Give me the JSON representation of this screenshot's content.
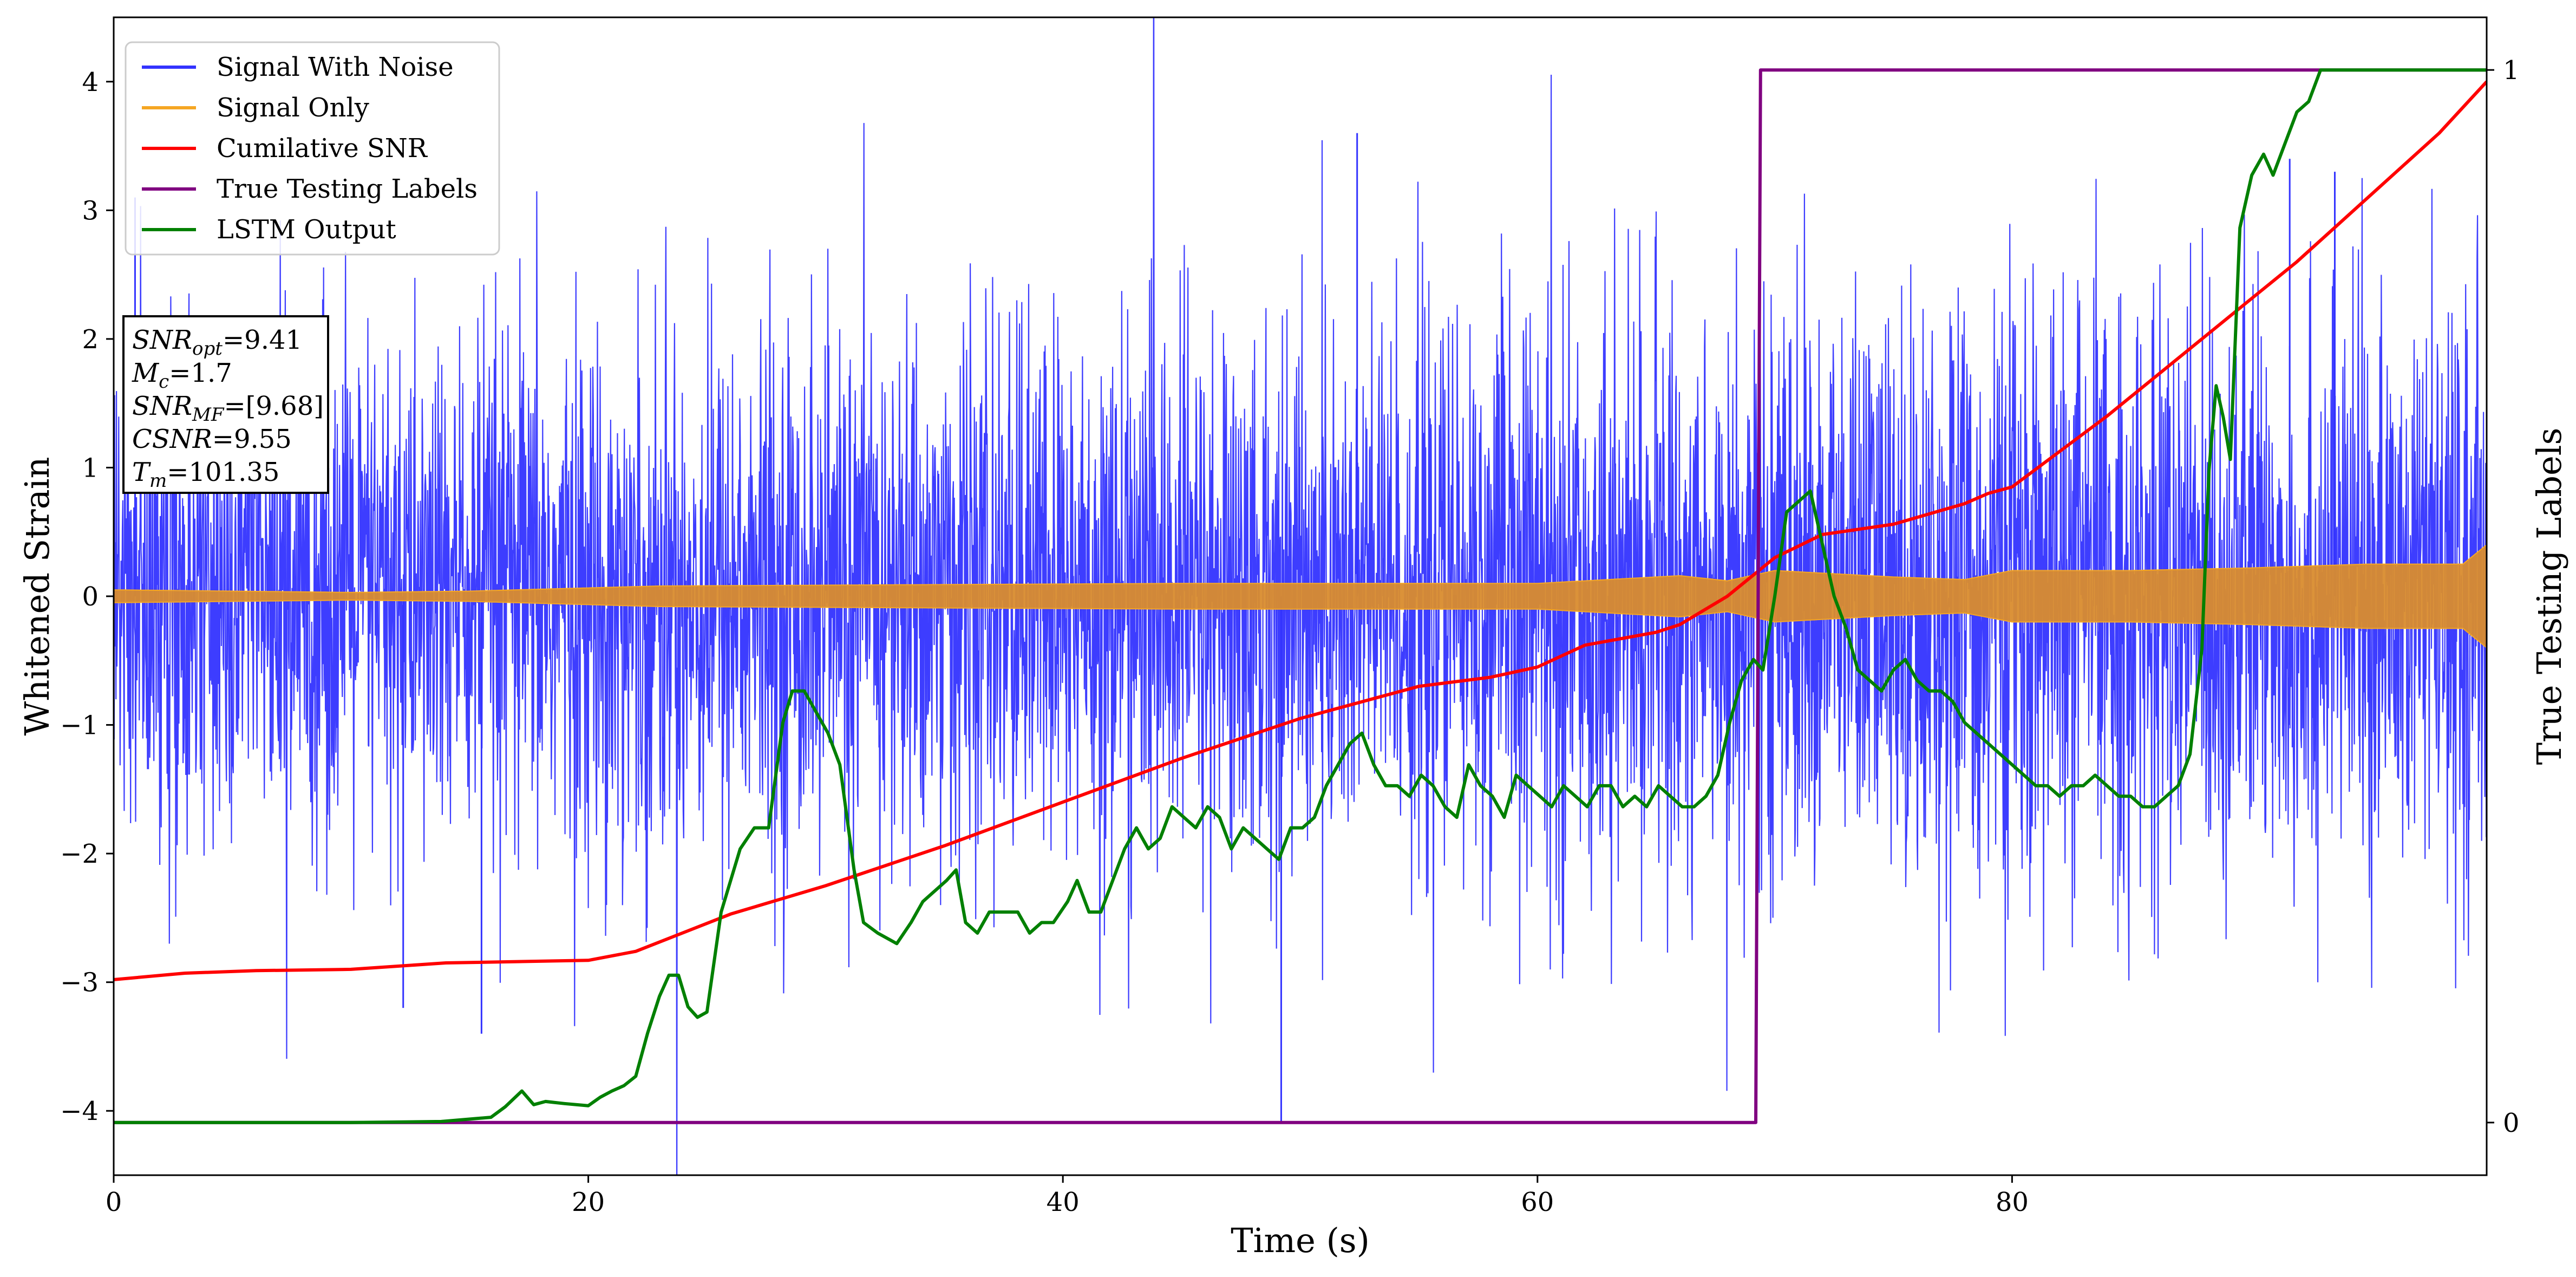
{
  "chart_data": {
    "type": "line",
    "xlabel": "Time (s)",
    "ylabel_left": "Whitened Strain",
    "ylabel_right": "True Testing Labels",
    "xlim": [
      0,
      100
    ],
    "ylim_left": [
      -4.5,
      4.5
    ],
    "ylim_right": [
      -0.05,
      1.05
    ],
    "x_ticks": [
      0,
      20,
      40,
      60,
      80
    ],
    "y_ticks_left": [
      -4,
      -3,
      -2,
      -1,
      0,
      1,
      2,
      3,
      4
    ],
    "y_ticks_right": [
      0,
      1
    ],
    "grid": false,
    "legend_position": "upper-left",
    "series": [
      {
        "name": "Signal With Noise",
        "color": "#3333ff",
        "axis": "left",
        "style": "dense noise, mostly within ±2 with spikes to about ±3.5",
        "envelope": {
          "x": [
            0,
            20,
            40,
            60,
            68,
            80,
            90,
            100
          ],
          "upper": [
            2.3,
            2.4,
            2.5,
            2.6,
            2.6,
            2.8,
            2.7,
            2.5
          ],
          "lower": [
            -2.3,
            -2.4,
            -2.5,
            -2.6,
            -2.6,
            -2.8,
            -2.7,
            -2.5
          ]
        },
        "extremes": [
          {
            "x": 0.9,
            "y": 3.1
          },
          {
            "x": 12.2,
            "y": -3.2
          },
          {
            "x": 15.5,
            "y": -3.4
          },
          {
            "x": 49.2,
            "y": -4.1
          },
          {
            "x": 52.4,
            "y": 3.6
          },
          {
            "x": 91.7,
            "y": 3.4
          },
          {
            "x": 93.6,
            "y": 3.3
          }
        ]
      },
      {
        "name": "Signal Only",
        "color": "#f5a623",
        "axis": "left",
        "style": "thin oscillating band growing in amplitude",
        "envelope": {
          "x": [
            0,
            10,
            15,
            23,
            45,
            52,
            60,
            66,
            68,
            70,
            75,
            78,
            80,
            85,
            90,
            95,
            99,
            100
          ],
          "amplitude": [
            0.05,
            0.03,
            0.04,
            0.08,
            0.1,
            0.1,
            0.1,
            0.16,
            0.12,
            0.2,
            0.15,
            0.13,
            0.2,
            0.2,
            0.22,
            0.25,
            0.25,
            0.4
          ]
        }
      },
      {
        "name": "Cumilative SNR",
        "color": "#ff0000",
        "axis": "left",
        "x": [
          0,
          3,
          6,
          10,
          14,
          20,
          22,
          26,
          30,
          35,
          40,
          45,
          50,
          55,
          58,
          60,
          62,
          65,
          66,
          68,
          70,
          72,
          75,
          78,
          79,
          80,
          84,
          88,
          90,
          92,
          95,
          98,
          100
        ],
        "y": [
          -2.98,
          -2.93,
          -2.91,
          -2.9,
          -2.85,
          -2.83,
          -2.76,
          -2.47,
          -2.25,
          -1.94,
          -1.6,
          -1.26,
          -0.95,
          -0.7,
          -0.63,
          -0.55,
          -0.38,
          -0.28,
          -0.22,
          0.0,
          0.3,
          0.48,
          0.56,
          0.72,
          0.8,
          0.85,
          1.4,
          2.0,
          2.3,
          2.6,
          3.1,
          3.6,
          4.0
        ]
      },
      {
        "name": "True Testing Labels",
        "color": "#800080",
        "axis": "right",
        "x": [
          0,
          69.2,
          69.4,
          100
        ],
        "y": [
          0,
          0,
          1,
          1
        ]
      },
      {
        "name": "LSTM Output",
        "color": "#008000",
        "axis": "right",
        "x": [
          0,
          10,
          13.8,
          15.9,
          16.5,
          17.2,
          17.7,
          18.2,
          19,
          20,
          20.5,
          21,
          21.5,
          22,
          22.5,
          23,
          23.4,
          23.8,
          24.2,
          24.6,
          25,
          25.6,
          26.4,
          27,
          27.6,
          28.2,
          28.6,
          29.1,
          29.6,
          30.1,
          30.6,
          31.2,
          31.6,
          32.2,
          33,
          33.6,
          34.1,
          34.6,
          35.1,
          35.5,
          35.9,
          36.4,
          36.9,
          37.3,
          37.8,
          38.1,
          38.6,
          39.1,
          39.6,
          40.2,
          40.6,
          41.1,
          41.6,
          42.6,
          43.1,
          43.6,
          44.1,
          44.6,
          45.1,
          45.6,
          46.1,
          46.6,
          47.1,
          47.6,
          48.1,
          48.6,
          49.1,
          49.6,
          50.1,
          50.6,
          51.1,
          51.6,
          52.1,
          52.6,
          53.1,
          53.6,
          54.1,
          54.6,
          55.1,
          55.6,
          56.1,
          56.6,
          57.1,
          57.6,
          58.1,
          58.6,
          59.1,
          59.6,
          60.1,
          60.6,
          61.1,
          61.6,
          62.1,
          62.6,
          63.1,
          63.6,
          64.1,
          64.6,
          65.1,
          65.6,
          66.1,
          66.6,
          67.1,
          67.6,
          68.1,
          68.6,
          69.1,
          69.5,
          70,
          70.5,
          71,
          71.5,
          72,
          72.5,
          73,
          73.5,
          74,
          74.5,
          75,
          75.5,
          76,
          76.5,
          77,
          77.5,
          78,
          78.5,
          79,
          79.5,
          80,
          80.5,
          81,
          81.5,
          82,
          82.5,
          83,
          83.5,
          84,
          84.5,
          85,
          85.5,
          86,
          86.5,
          87,
          87.5,
          88,
          88.3,
          88.6,
          88.9,
          89.2,
          89.6,
          90.1,
          90.6,
          91,
          91.5,
          92,
          92.5,
          93,
          94,
          95,
          96,
          97,
          98,
          99,
          100
        ],
        "y": [
          0,
          0,
          0.001,
          0.005,
          0.015,
          0.03,
          0.017,
          0.02,
          0.018,
          0.016,
          0.024,
          0.03,
          0.035,
          0.044,
          0.085,
          0.12,
          0.14,
          0.14,
          0.11,
          0.1,
          0.105,
          0.2,
          0.26,
          0.28,
          0.28,
          0.38,
          0.41,
          0.41,
          0.39,
          0.37,
          0.34,
          0.24,
          0.19,
          0.18,
          0.17,
          0.19,
          0.21,
          0.22,
          0.23,
          0.24,
          0.19,
          0.18,
          0.2,
          0.2,
          0.2,
          0.2,
          0.18,
          0.19,
          0.19,
          0.21,
          0.23,
          0.2,
          0.2,
          0.26,
          0.28,
          0.26,
          0.27,
          0.3,
          0.29,
          0.28,
          0.3,
          0.29,
          0.26,
          0.28,
          0.27,
          0.26,
          0.25,
          0.28,
          0.28,
          0.29,
          0.32,
          0.34,
          0.36,
          0.37,
          0.34,
          0.32,
          0.32,
          0.31,
          0.33,
          0.32,
          0.3,
          0.29,
          0.34,
          0.32,
          0.31,
          0.29,
          0.33,
          0.32,
          0.31,
          0.3,
          0.32,
          0.31,
          0.3,
          0.32,
          0.32,
          0.3,
          0.31,
          0.3,
          0.32,
          0.31,
          0.3,
          0.3,
          0.31,
          0.33,
          0.38,
          0.42,
          0.44,
          0.43,
          0.5,
          0.58,
          0.59,
          0.6,
          0.55,
          0.5,
          0.47,
          0.43,
          0.42,
          0.41,
          0.43,
          0.44,
          0.42,
          0.41,
          0.41,
          0.4,
          0.38,
          0.37,
          0.36,
          0.35,
          0.34,
          0.33,
          0.32,
          0.32,
          0.31,
          0.32,
          0.32,
          0.33,
          0.32,
          0.31,
          0.31,
          0.3,
          0.3,
          0.31,
          0.32,
          0.35,
          0.45,
          0.62,
          0.7,
          0.67,
          0.63,
          0.85,
          0.9,
          0.92,
          0.9,
          0.93,
          0.96,
          0.97,
          1.0,
          1.0,
          1.0,
          1.0,
          1.0,
          1.0,
          1.0,
          1.0
        ]
      }
    ],
    "annotation_lines": [
      {
        "var": "SNR",
        "sub": "opt",
        "value": "=9.41"
      },
      {
        "var": "M",
        "sub": "c",
        "value": "=1.7"
      },
      {
        "var": "SNR",
        "sub": "MF",
        "value": "=[9.68]"
      },
      {
        "var": "CSNR",
        "sub": "",
        "value": "=9.55"
      },
      {
        "var": "T",
        "sub": "m",
        "value": "=101.35"
      }
    ]
  }
}
